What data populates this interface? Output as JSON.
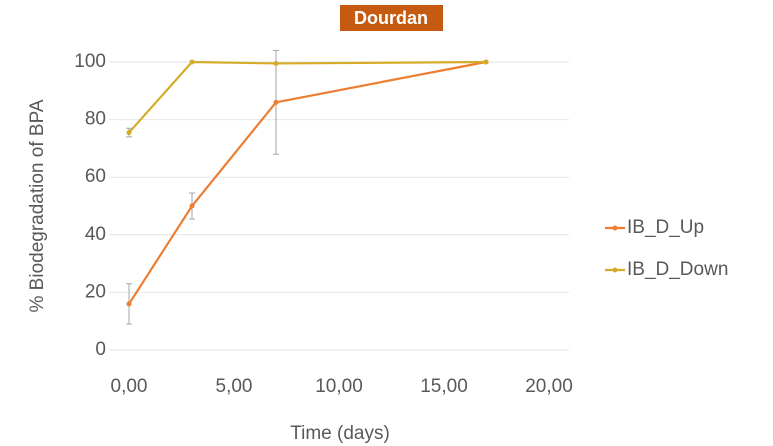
{
  "chart_data": {
    "type": "line",
    "title": "Dourdan",
    "xlabel": "Time (days)",
    "ylabel": "% Biodegradation of BPA",
    "series": [
      {
        "name": "IB_D_Up",
        "color": "#ed7d31",
        "x": [
          0,
          3,
          7,
          17
        ],
        "values": [
          16,
          50,
          86,
          100
        ],
        "errors": [
          7,
          4.5,
          18,
          0
        ]
      },
      {
        "name": "IB_D_Down",
        "color": "#d4ac2a",
        "x": [
          0,
          3,
          7,
          17
        ],
        "values": [
          75.5,
          100,
          99.5,
          100
        ],
        "errors": [
          1.5,
          0,
          0,
          0
        ]
      }
    ],
    "xlim": [
      0,
      20
    ],
    "xticks": [
      {
        "value": 0,
        "label": "0,00"
      },
      {
        "value": 5,
        "label": "5,00"
      },
      {
        "value": 10,
        "label": "10,00"
      },
      {
        "value": 15,
        "label": "15,00"
      },
      {
        "value": 20,
        "label": "20,00"
      }
    ],
    "ylim": [
      0,
      100
    ],
    "yticks": [
      0,
      20,
      40,
      60,
      80,
      100
    ],
    "grid": true,
    "legend": "right"
  }
}
